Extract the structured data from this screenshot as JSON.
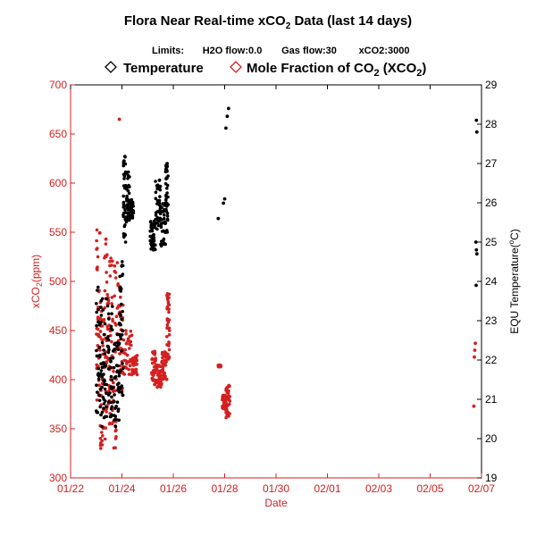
{
  "chart_data": {
    "type": "scatter",
    "title_main": "Flora Near Real-time xCO",
    "title_sub2": "2",
    "title_tail": " Data (last 14 days)",
    "limits": {
      "label": "Limits:",
      "h2o": "H2O flow:0.0",
      "gas": "Gas flow:30",
      "xco2": "xCO2:3000"
    },
    "legend": [
      {
        "name": "Temperature",
        "marker": "diamond",
        "color": "#000000"
      },
      {
        "name_main": "Mole Fraction of CO",
        "name_sub": "2",
        "name_mid": " (XCO",
        "name_sub2": "2",
        "name_end": ")",
        "marker": "diamond",
        "color": "#d42020"
      }
    ],
    "xlabel": "Date",
    "ylabel_left_main": "xCO",
    "ylabel_left_sub": "2",
    "ylabel_left_end": "(ppm)",
    "ylabel_right_main": "EQU Temperature(",
    "ylabel_right_sup": "o",
    "ylabel_right_end": "C)",
    "xlim": [
      0,
      16
    ],
    "x_ticks": [
      0,
      2,
      4,
      6,
      8,
      10,
      12,
      14,
      16
    ],
    "x_tick_labels": [
      "01/22",
      "01/24",
      "01/26",
      "01/28",
      "01/30",
      "02/01",
      "02/03",
      "02/05",
      "02/07"
    ],
    "y_left_lim": [
      300,
      700
    ],
    "y_left_ticks": [
      300,
      350,
      400,
      450,
      500,
      550,
      600,
      650,
      700
    ],
    "y_right_lim": [
      19,
      29
    ],
    "y_right_ticks": [
      19,
      20,
      21,
      22,
      23,
      24,
      25,
      26,
      27,
      28,
      29
    ],
    "colors": {
      "xco2": "#d42020",
      "temperature": "#000000"
    },
    "series": [
      {
        "name": "Mole Fraction of CO2 (XCO2)",
        "axis": "left",
        "segments": [
          {
            "x0": 1.0,
            "x1": 1.15,
            "y0": 370,
            "y1": 555
          },
          {
            "x0": 1.15,
            "x1": 1.3,
            "y0": 330,
            "y1": 480
          },
          {
            "x0": 1.3,
            "x1": 1.45,
            "y0": 335,
            "y1": 545
          },
          {
            "x0": 1.45,
            "x1": 1.65,
            "y0": 350,
            "y1": 530
          },
          {
            "x0": 1.65,
            "x1": 1.85,
            "y0": 330,
            "y1": 520
          },
          {
            "x0": 1.85,
            "x1": 2.05,
            "y0": 380,
            "y1": 500
          },
          {
            "x0": 2.05,
            "x1": 2.4,
            "y0": 405,
            "y1": 450
          },
          {
            "x0": 2.4,
            "x1": 2.6,
            "y0": 405,
            "y1": 425
          },
          {
            "x0": 3.15,
            "x1": 3.35,
            "y0": 395,
            "y1": 430
          },
          {
            "x0": 3.35,
            "x1": 3.55,
            "y0": 392,
            "y1": 415
          },
          {
            "x0": 3.55,
            "x1": 3.75,
            "y0": 400,
            "y1": 430
          },
          {
            "x0": 3.75,
            "x1": 3.85,
            "y0": 420,
            "y1": 490
          },
          {
            "x0": 5.75,
            "x1": 5.85,
            "y0": 413,
            "y1": 415
          },
          {
            "x0": 5.9,
            "x1": 6.05,
            "y0": 370,
            "y1": 385
          },
          {
            "x0": 6.05,
            "x1": 6.2,
            "y0": 360,
            "y1": 395
          }
        ],
        "points": [
          {
            "x": 1.9,
            "y": 665
          },
          {
            "x": 15.7,
            "y": 373
          },
          {
            "x": 15.72,
            "y": 423
          },
          {
            "x": 15.74,
            "y": 430
          },
          {
            "x": 15.76,
            "y": 437
          }
        ]
      },
      {
        "name": "Temperature",
        "axis": "right",
        "segments": [
          {
            "x0": 1.0,
            "x1": 1.2,
            "y0": 20.6,
            "y1": 24.0
          },
          {
            "x0": 1.2,
            "x1": 1.45,
            "y0": 20.1,
            "y1": 23.6
          },
          {
            "x0": 1.45,
            "x1": 1.7,
            "y0": 20.5,
            "y1": 23.4
          },
          {
            "x0": 1.7,
            "x1": 1.9,
            "y0": 20.3,
            "y1": 23.0
          },
          {
            "x0": 1.9,
            "x1": 2.05,
            "y0": 21.0,
            "y1": 24.6
          },
          {
            "x0": 2.05,
            "x1": 2.15,
            "y0": 25.0,
            "y1": 27.2
          },
          {
            "x0": 2.15,
            "x1": 2.3,
            "y0": 25.5,
            "y1": 26.8
          },
          {
            "x0": 2.3,
            "x1": 2.45,
            "y0": 25.6,
            "y1": 26.1
          },
          {
            "x0": 3.1,
            "x1": 3.3,
            "y0": 24.8,
            "y1": 25.6
          },
          {
            "x0": 3.3,
            "x1": 3.5,
            "y0": 25.3,
            "y1": 26.6
          },
          {
            "x0": 3.5,
            "x1": 3.7,
            "y0": 24.9,
            "y1": 26.0
          },
          {
            "x0": 3.7,
            "x1": 3.8,
            "y0": 25.2,
            "y1": 27.0
          }
        ],
        "points": [
          {
            "x": 5.75,
            "y": 25.6
          },
          {
            "x": 5.95,
            "y": 25.99
          },
          {
            "x": 6.0,
            "y": 26.1
          },
          {
            "x": 6.05,
            "y": 27.9
          },
          {
            "x": 6.1,
            "y": 28.2
          },
          {
            "x": 6.15,
            "y": 28.4
          },
          {
            "x": 15.8,
            "y": 28.1
          },
          {
            "x": 15.82,
            "y": 27.8
          },
          {
            "x": 15.78,
            "y": 25.0
          },
          {
            "x": 15.8,
            "y": 24.8
          },
          {
            "x": 15.82,
            "y": 24.7
          },
          {
            "x": 15.79,
            "y": 23.9
          }
        ]
      }
    ]
  }
}
